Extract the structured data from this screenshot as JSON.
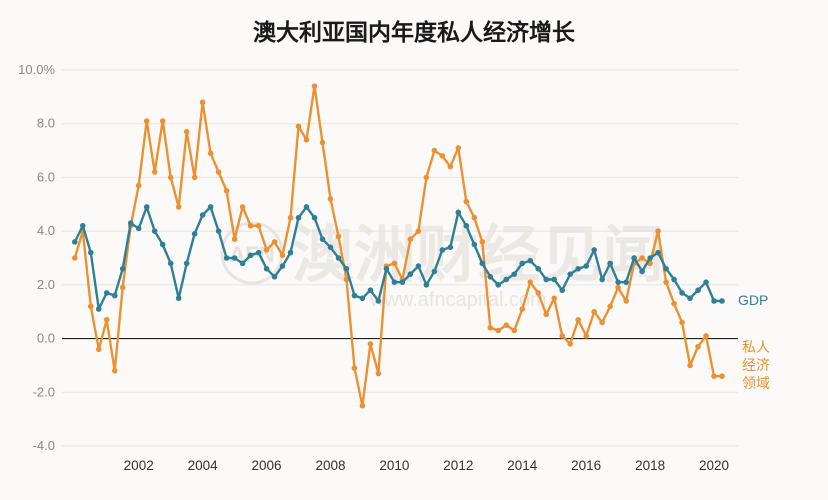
{
  "chart_data": {
    "type": "line",
    "title": "澳大利亚国内年度私人经济增长",
    "xlabel": "",
    "ylabel": "",
    "ylim": [
      -4.0,
      10.0
    ],
    "y_ticks": [
      "10.0%",
      "8.0",
      "6.0",
      "4.0",
      "2.0",
      "0.0",
      "-2.0",
      "-4.0"
    ],
    "y_tick_values": [
      10,
      8,
      6,
      4,
      2,
      0,
      -2,
      -4
    ],
    "x_ticks": [
      "2002",
      "2004",
      "2006",
      "2008",
      "2010",
      "2012",
      "2014",
      "2016",
      "2018",
      "2020"
    ],
    "x_tick_values": [
      2002,
      2004,
      2006,
      2008,
      2010,
      2012,
      2014,
      2016,
      2018,
      2020
    ],
    "x_range": [
      1999.6,
      2020.75
    ],
    "grid": true,
    "series": [
      {
        "name": "GDP",
        "color": "#2f7f96",
        "label_lines": [
          "GDP"
        ],
        "x": [
          2000.0,
          2000.25,
          2000.5,
          2000.75,
          2001.0,
          2001.25,
          2001.5,
          2001.75,
          2002.0,
          2002.25,
          2002.5,
          2002.75,
          2003.0,
          2003.25,
          2003.5,
          2003.75,
          2004.0,
          2004.25,
          2004.5,
          2004.75,
          2005.0,
          2005.25,
          2005.5,
          2005.75,
          2006.0,
          2006.25,
          2006.5,
          2006.75,
          2007.0,
          2007.25,
          2007.5,
          2007.75,
          2008.0,
          2008.25,
          2008.5,
          2008.75,
          2009.0,
          2009.25,
          2009.5,
          2009.75,
          2010.0,
          2010.25,
          2010.5,
          2010.75,
          2011.0,
          2011.25,
          2011.5,
          2011.75,
          2012.0,
          2012.25,
          2012.5,
          2012.75,
          2013.0,
          2013.25,
          2013.5,
          2013.75,
          2014.0,
          2014.25,
          2014.5,
          2014.75,
          2015.0,
          2015.25,
          2015.5,
          2015.75,
          2016.0,
          2016.25,
          2016.5,
          2016.75,
          2017.0,
          2017.25,
          2017.5,
          2017.75,
          2018.0,
          2018.25,
          2018.5,
          2018.75,
          2019.0,
          2019.25,
          2019.5,
          2019.75,
          2020.0,
          2020.25
        ],
        "values": [
          3.6,
          4.2,
          3.2,
          1.1,
          1.7,
          1.6,
          2.6,
          4.3,
          4.1,
          4.9,
          4.0,
          3.5,
          2.8,
          1.5,
          2.8,
          3.9,
          4.6,
          4.9,
          4.0,
          3.0,
          3.0,
          2.8,
          3.1,
          3.2,
          2.6,
          2.3,
          2.7,
          3.2,
          4.5,
          4.9,
          4.5,
          3.7,
          3.4,
          3.0,
          2.6,
          1.6,
          1.5,
          1.8,
          1.4,
          2.6,
          2.1,
          2.1,
          2.4,
          2.7,
          2.0,
          2.5,
          3.3,
          3.4,
          4.7,
          4.2,
          3.5,
          2.8,
          2.3,
          2.0,
          2.2,
          2.4,
          2.8,
          2.9,
          2.6,
          2.2,
          2.2,
          1.8,
          2.4,
          2.6,
          2.7,
          3.3,
          2.2,
          2.8,
          2.1,
          2.1,
          3.0,
          2.5,
          3.0,
          3.2,
          2.6,
          2.2,
          1.7,
          1.5,
          1.8,
          2.1,
          1.4,
          1.4
        ]
      },
      {
        "name": "私人经济领域",
        "color": "#ea9233",
        "label_lines": [
          "私人",
          "经济",
          "领域"
        ],
        "x": [
          2000.0,
          2000.25,
          2000.5,
          2000.75,
          2001.0,
          2001.25,
          2001.5,
          2001.75,
          2002.0,
          2002.25,
          2002.5,
          2002.75,
          2003.0,
          2003.25,
          2003.5,
          2003.75,
          2004.0,
          2004.25,
          2004.5,
          2004.75,
          2005.0,
          2005.25,
          2005.5,
          2005.75,
          2006.0,
          2006.25,
          2006.5,
          2006.75,
          2007.0,
          2007.25,
          2007.5,
          2007.75,
          2008.0,
          2008.25,
          2008.5,
          2008.75,
          2009.0,
          2009.25,
          2009.5,
          2009.75,
          2010.0,
          2010.25,
          2010.5,
          2010.75,
          2011.0,
          2011.25,
          2011.5,
          2011.75,
          2012.0,
          2012.25,
          2012.5,
          2012.75,
          2013.0,
          2013.25,
          2013.5,
          2013.75,
          2014.0,
          2014.25,
          2014.5,
          2014.75,
          2015.0,
          2015.25,
          2015.5,
          2015.75,
          2016.0,
          2016.25,
          2016.5,
          2016.75,
          2017.0,
          2017.25,
          2017.5,
          2017.75,
          2018.0,
          2018.25,
          2018.5,
          2018.75,
          2019.0,
          2019.25,
          2019.5,
          2019.75,
          2020.0,
          2020.25
        ],
        "values": [
          3.0,
          4.0,
          1.2,
          -0.4,
          0.7,
          -1.2,
          1.9,
          4.2,
          5.7,
          8.1,
          6.2,
          8.1,
          6.0,
          4.9,
          7.7,
          6.0,
          8.8,
          6.9,
          6.2,
          5.5,
          3.7,
          4.9,
          4.2,
          4.2,
          3.3,
          3.6,
          3.1,
          4.5,
          7.9,
          7.4,
          9.4,
          7.3,
          5.2,
          3.8,
          2.2,
          -1.1,
          -2.5,
          -0.2,
          -1.3,
          2.7,
          2.8,
          2.2,
          3.7,
          4.0,
          6.0,
          7.0,
          6.8,
          6.4,
          7.1,
          5.1,
          4.5,
          3.6,
          0.4,
          0.3,
          0.5,
          0.3,
          1.1,
          2.1,
          1.7,
          0.9,
          1.5,
          0.1,
          -0.2,
          0.7,
          0.1,
          1.0,
          0.6,
          1.2,
          1.9,
          1.4,
          2.8,
          3.0,
          2.8,
          4.0,
          2.1,
          1.3,
          0.6,
          -1.0,
          -0.3,
          0.1,
          -1.4,
          -1.4
        ]
      }
    ]
  },
  "watermark": {
    "text": "澳洲财经见闻",
    "sub": "www.afncapital.com",
    "logo": "AFN"
  }
}
